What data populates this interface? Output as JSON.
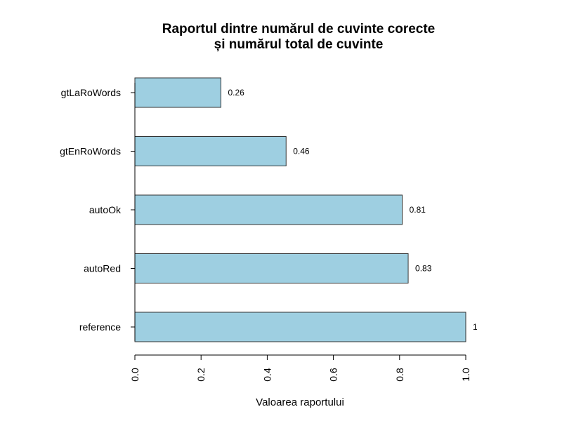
{
  "chart_data": {
    "type": "bar",
    "orientation": "horizontal",
    "title": "Raportul dintre numărul de cuvinte corecte",
    "subtitle": "și numărul total de cuvinte",
    "xlabel": "Valoarea raportului",
    "ylabel": "",
    "categories": [
      "reference",
      "autoRed",
      "autoOk",
      "gtEnRoWords",
      "gtLaRoWords"
    ],
    "values": [
      1.0,
      0.826,
      0.808,
      0.457,
      0.26
    ],
    "value_labels": [
      "1",
      "0.83",
      "0.81",
      "0.46",
      "0.26"
    ],
    "xlim": [
      0,
      1
    ],
    "xticks": [
      0,
      0.2,
      0.4,
      0.6,
      0.8,
      1.0
    ],
    "xtick_labels": [
      "0.0",
      "0.2",
      "0.4",
      "0.6",
      "0.8",
      "1.0"
    ],
    "grid": false,
    "colors": {
      "bar_fill": "#9ecfe1",
      "bar_stroke": "#333333",
      "axis": "#000000"
    }
  }
}
